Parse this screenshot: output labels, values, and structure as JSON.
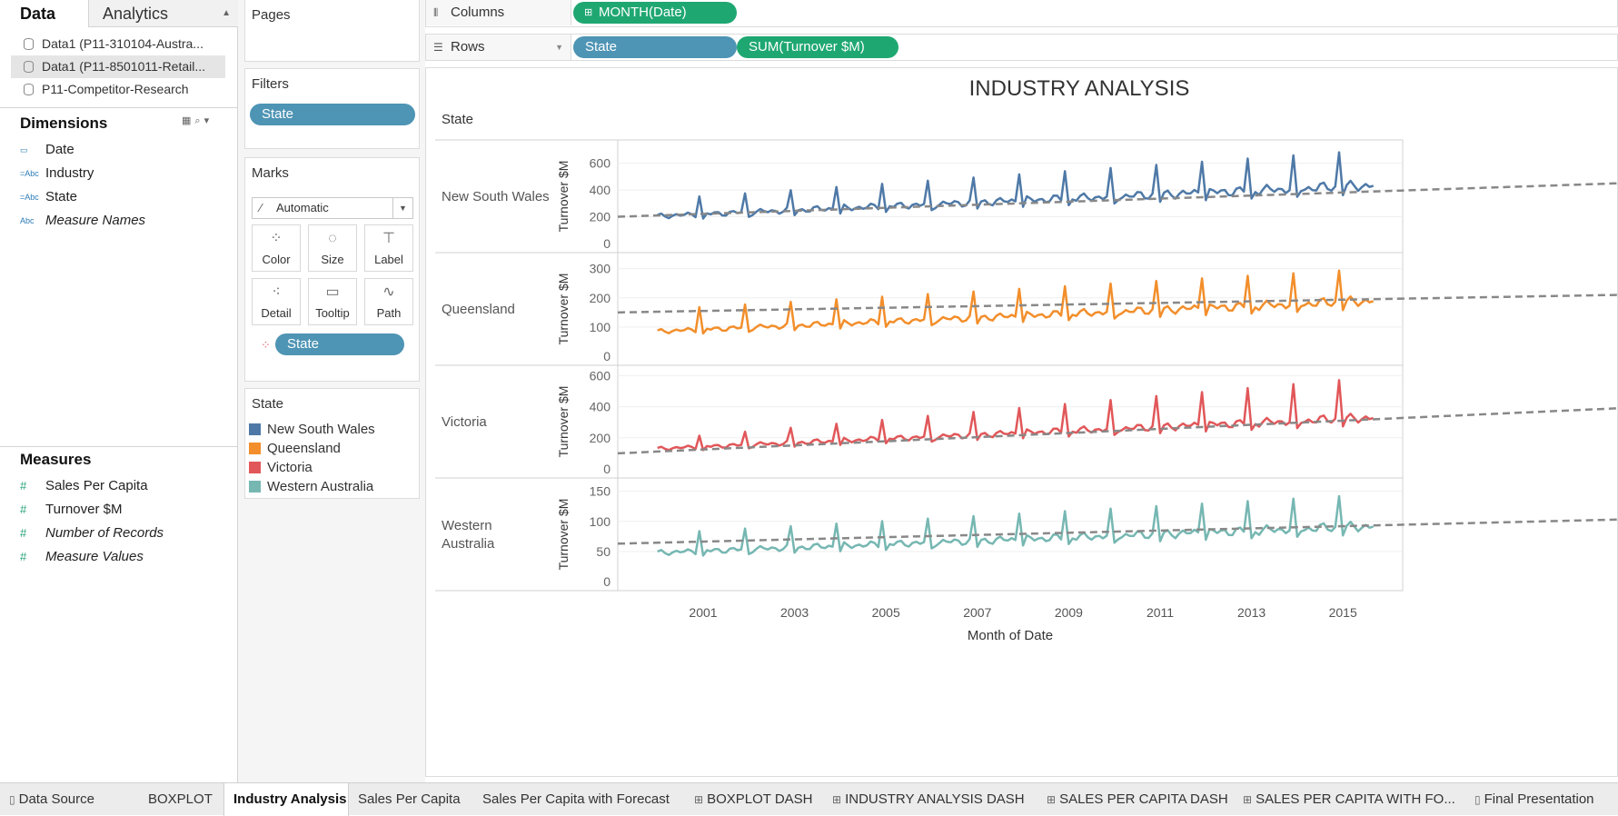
{
  "data_pane": {
    "tab_data": "Data",
    "tab_analytics": "Analytics",
    "data_sources": [
      {
        "name": "Data1 (P11-310104-Austra...",
        "selected": false
      },
      {
        "name": "Data1 (P11-8501011-Retail...",
        "selected": true
      },
      {
        "name": "P11-Competitor-Research",
        "selected": false
      }
    ],
    "dimensions_title": "Dimensions",
    "dimensions": [
      {
        "icon": "calendar-icon",
        "glyph": "▭",
        "label": "Date"
      },
      {
        "icon": "abc-icon",
        "glyph": "=Abc",
        "label": "Industry"
      },
      {
        "icon": "abc-icon",
        "glyph": "=Abc",
        "label": "State"
      },
      {
        "icon": "abc-icon",
        "glyph": "Abc",
        "label": "Measure Names"
      }
    ],
    "measures_title": "Measures",
    "measures": [
      {
        "icon": "hash-icon",
        "glyph": "#",
        "label": "Sales Per Capita"
      },
      {
        "icon": "hash-icon",
        "glyph": "#",
        "label": "Turnover $M"
      },
      {
        "icon": "hash-icon",
        "glyph": "#",
        "label": "Number of Records"
      },
      {
        "icon": "hash-icon",
        "glyph": "#",
        "label": "Measure Values"
      }
    ]
  },
  "cards": {
    "pages_title": "Pages",
    "filters_title": "Filters",
    "filter_pill": "State",
    "marks_title": "Marks",
    "mark_type": "Automatic",
    "mark_buttons": [
      {
        "label": "Color",
        "icon": "color-icon"
      },
      {
        "label": "Size",
        "icon": "size-icon"
      },
      {
        "label": "Label",
        "icon": "label-icon"
      },
      {
        "label": "Detail",
        "icon": "detail-icon"
      },
      {
        "label": "Tooltip",
        "icon": "tooltip-icon"
      },
      {
        "label": "Path",
        "icon": "path-icon"
      }
    ],
    "color_pill": "State",
    "legend_title": "State",
    "legend": [
      {
        "label": "New South Wales",
        "color": "#4e79a7"
      },
      {
        "label": "Queensland",
        "color": "#f28e2b"
      },
      {
        "label": "Victoria",
        "color": "#e15759"
      },
      {
        "label": "Western Australia",
        "color": "#76b7b2"
      }
    ]
  },
  "shelves": {
    "columns_label": "Columns",
    "columns_pills": [
      "MONTH(Date)"
    ],
    "rows_label": "Rows",
    "rows_pills": [
      "State",
      "SUM(Turnover $M)"
    ]
  },
  "chart_data": {
    "type": "line",
    "title": "INDUSTRY ANALYSIS",
    "row_header": "State",
    "xlabel": "Month of Date",
    "ylabel": "Turnover $M",
    "x_ticks": [
      "2001",
      "2003",
      "2005",
      "2007",
      "2009",
      "2011",
      "2013",
      "2015"
    ],
    "trend_line": "dashed grey linear trend per panel",
    "panels": [
      {
        "name": "New South Wales",
        "color": "#4e79a7",
        "ylim": [
          0,
          720
        ],
        "yticks": [
          0,
          200,
          400,
          600
        ],
        "base_start": 205,
        "base_end": 435,
        "peak_start": 330,
        "peak_end": 700,
        "trend": [
          200,
          450
        ]
      },
      {
        "name": "Queensland",
        "color": "#f28e2b",
        "ylim": [
          0,
          330
        ],
        "yticks": [
          0,
          100,
          200,
          300
        ],
        "base_start": 85,
        "base_end": 190,
        "peak_start": 160,
        "peak_end": 300,
        "trend": [
          150,
          210
        ]
      },
      {
        "name": "Victoria",
        "color": "#e15759",
        "ylim": [
          0,
          620
        ],
        "yticks": [
          0,
          200,
          400,
          600
        ],
        "base_start": 130,
        "base_end": 330,
        "peak_start": 190,
        "peak_end": 590,
        "trend": [
          100,
          390
        ]
      },
      {
        "name": "Western Australia",
        "color": "#76b7b2",
        "ylim": [
          0,
          160
        ],
        "yticks": [
          0,
          50,
          100,
          150
        ],
        "base_start": 48,
        "base_end": 92,
        "peak_start": 80,
        "peak_end": 145,
        "trend": [
          63,
          103
        ]
      }
    ]
  },
  "sheet_tabs": [
    {
      "label": "Data Source",
      "icon": "database-icon",
      "glyph": "▯",
      "active": false
    },
    {
      "label": "BOXPLOT",
      "icon": "",
      "glyph": "",
      "active": false
    },
    {
      "label": "Industry Analysis",
      "icon": "",
      "glyph": "",
      "active": true
    },
    {
      "label": "Sales Per Capita",
      "icon": "",
      "glyph": "",
      "active": false
    },
    {
      "label": "Sales Per Capita with Forecast",
      "icon": "",
      "glyph": "",
      "active": false
    },
    {
      "label": "BOXPLOT DASH",
      "icon": "dashboard-icon",
      "glyph": "⊞",
      "active": false
    },
    {
      "label": "INDUSTRY ANALYSIS DASH",
      "icon": "dashboard-icon",
      "glyph": "⊞",
      "active": false
    },
    {
      "label": "SALES PER CAPITA DASH",
      "icon": "dashboard-icon",
      "glyph": "⊞",
      "active": false
    },
    {
      "label": "SALES PER CAPITA WITH FO...",
      "icon": "dashboard-icon",
      "glyph": "⊞",
      "active": false
    },
    {
      "label": "Final Presentation",
      "icon": "story-icon",
      "glyph": "▯",
      "active": false
    }
  ]
}
